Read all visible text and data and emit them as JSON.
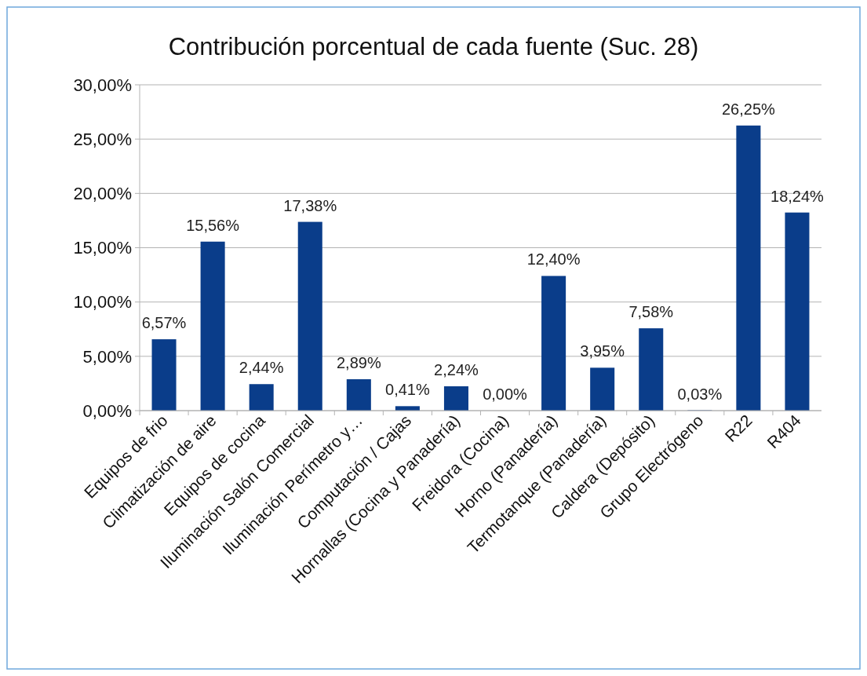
{
  "chart_data": {
    "type": "bar",
    "title": "Contribución porcentual de cada fuente (Suc. 28)",
    "categories": [
      "Equipos de frio",
      "Climatización de aire",
      "Equipos de cocina",
      "Iluminación Salón Comercial",
      "Iluminación Perímetro y…",
      "Computación / Cajas",
      "Hornallas (Cocina y Panadería)",
      "Freidora (Cocina)",
      "Horno (Panadería)",
      "Termotanque (Panadería)",
      "Caldera (Depósito)",
      "Grupo Electrógeno",
      "R22",
      "R404"
    ],
    "values": [
      6.57,
      15.56,
      2.44,
      17.38,
      2.89,
      0.41,
      2.24,
      0.0,
      12.4,
      3.95,
      7.58,
      0.03,
      26.25,
      18.24
    ],
    "value_labels": [
      "6,57%",
      "15,56%",
      "2,44%",
      "17,38%",
      "2,89%",
      "0,41%",
      "2,24%",
      "0,00%",
      "12,40%",
      "3,95%",
      "7,58%",
      "0,03%",
      "26,25%",
      "18,24%"
    ],
    "color": "#0a3d8a",
    "ylim": [
      0,
      30
    ],
    "yticks": [
      {
        "value": 0,
        "label": "0,00%"
      },
      {
        "value": 5,
        "label": "5,00%"
      },
      {
        "value": 10,
        "label": "10,00%"
      },
      {
        "value": 15,
        "label": "15,00%"
      },
      {
        "value": 20,
        "label": "20,00%"
      },
      {
        "value": 25,
        "label": "25,00%"
      },
      {
        "value": 30,
        "label": "30,00%"
      }
    ],
    "grid": "y"
  }
}
